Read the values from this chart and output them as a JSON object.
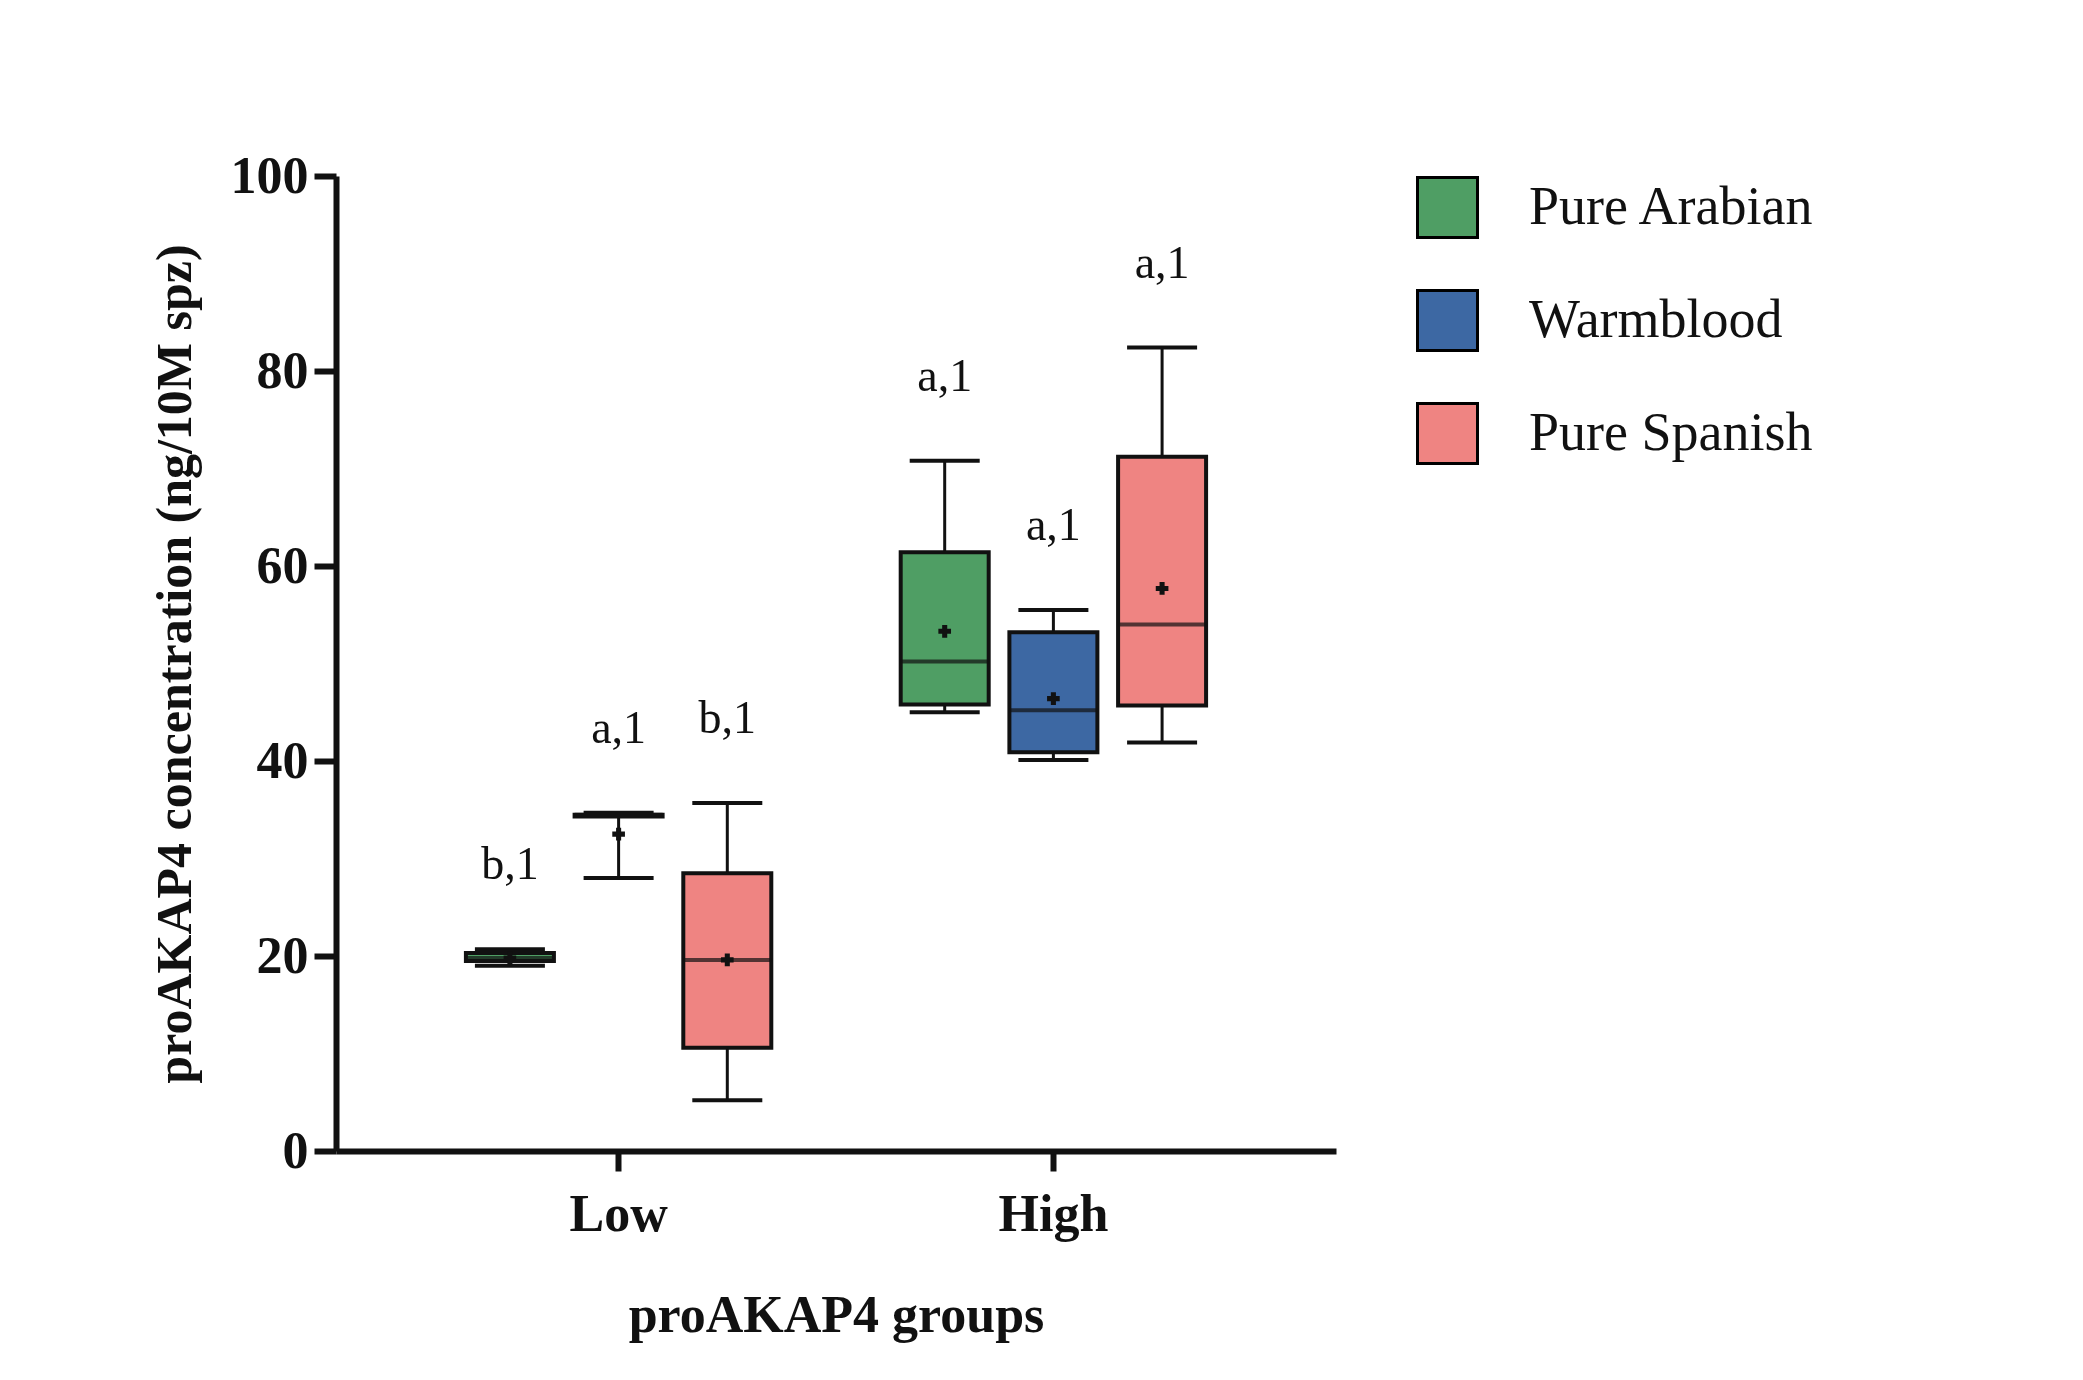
{
  "chart_data": {
    "type": "box",
    "xlabel": "proAKAP4 groups",
    "ylabel": "proAKAP4 concentration (ng/10M spz)",
    "categories": [
      "Low",
      "High"
    ],
    "series": [
      {
        "name": "Pure Arabian",
        "color": "#4f9e64",
        "boxes": [
          {
            "low": 19,
            "q1": 19.5,
            "median": 19.8,
            "q3": 20.3,
            "high": 20.7,
            "mean": 19.8
          },
          {
            "low": 45,
            "q1": 45.8,
            "median": 50.2,
            "q3": 61.4,
            "high": 70.8,
            "mean": 53.3
          }
        ]
      },
      {
        "name": "Warmblood",
        "color": "#3d68a3",
        "boxes": [
          {
            "low": 28,
            "q1": 34.3,
            "median": 34.5,
            "q3": 34.5,
            "high": 34.7,
            "mean": 32.5
          },
          {
            "low": 40.1,
            "q1": 40.9,
            "median": 45.2,
            "q3": 53.2,
            "high": 55.5,
            "mean": 46.4
          }
        ]
      },
      {
        "name": "Pure Spanish",
        "color": "#ef8482",
        "boxes": [
          {
            "low": 5.2,
            "q1": 10.6,
            "median": 19.6,
            "q3": 28.5,
            "high": 35.7,
            "mean": 19.6
          },
          {
            "low": 41.9,
            "q1": 45.7,
            "median": 54,
            "q3": 71.2,
            "high": 82.4,
            "mean": 57.7
          }
        ]
      }
    ],
    "annotations": [
      "b,1",
      "a,1",
      "b,1",
      "a,1",
      "a,1",
      "a,1"
    ],
    "ylim": [
      0,
      100
    ],
    "yticks": [
      0,
      20,
      40,
      60,
      80,
      100
    ],
    "grid": false,
    "legend": "right"
  }
}
